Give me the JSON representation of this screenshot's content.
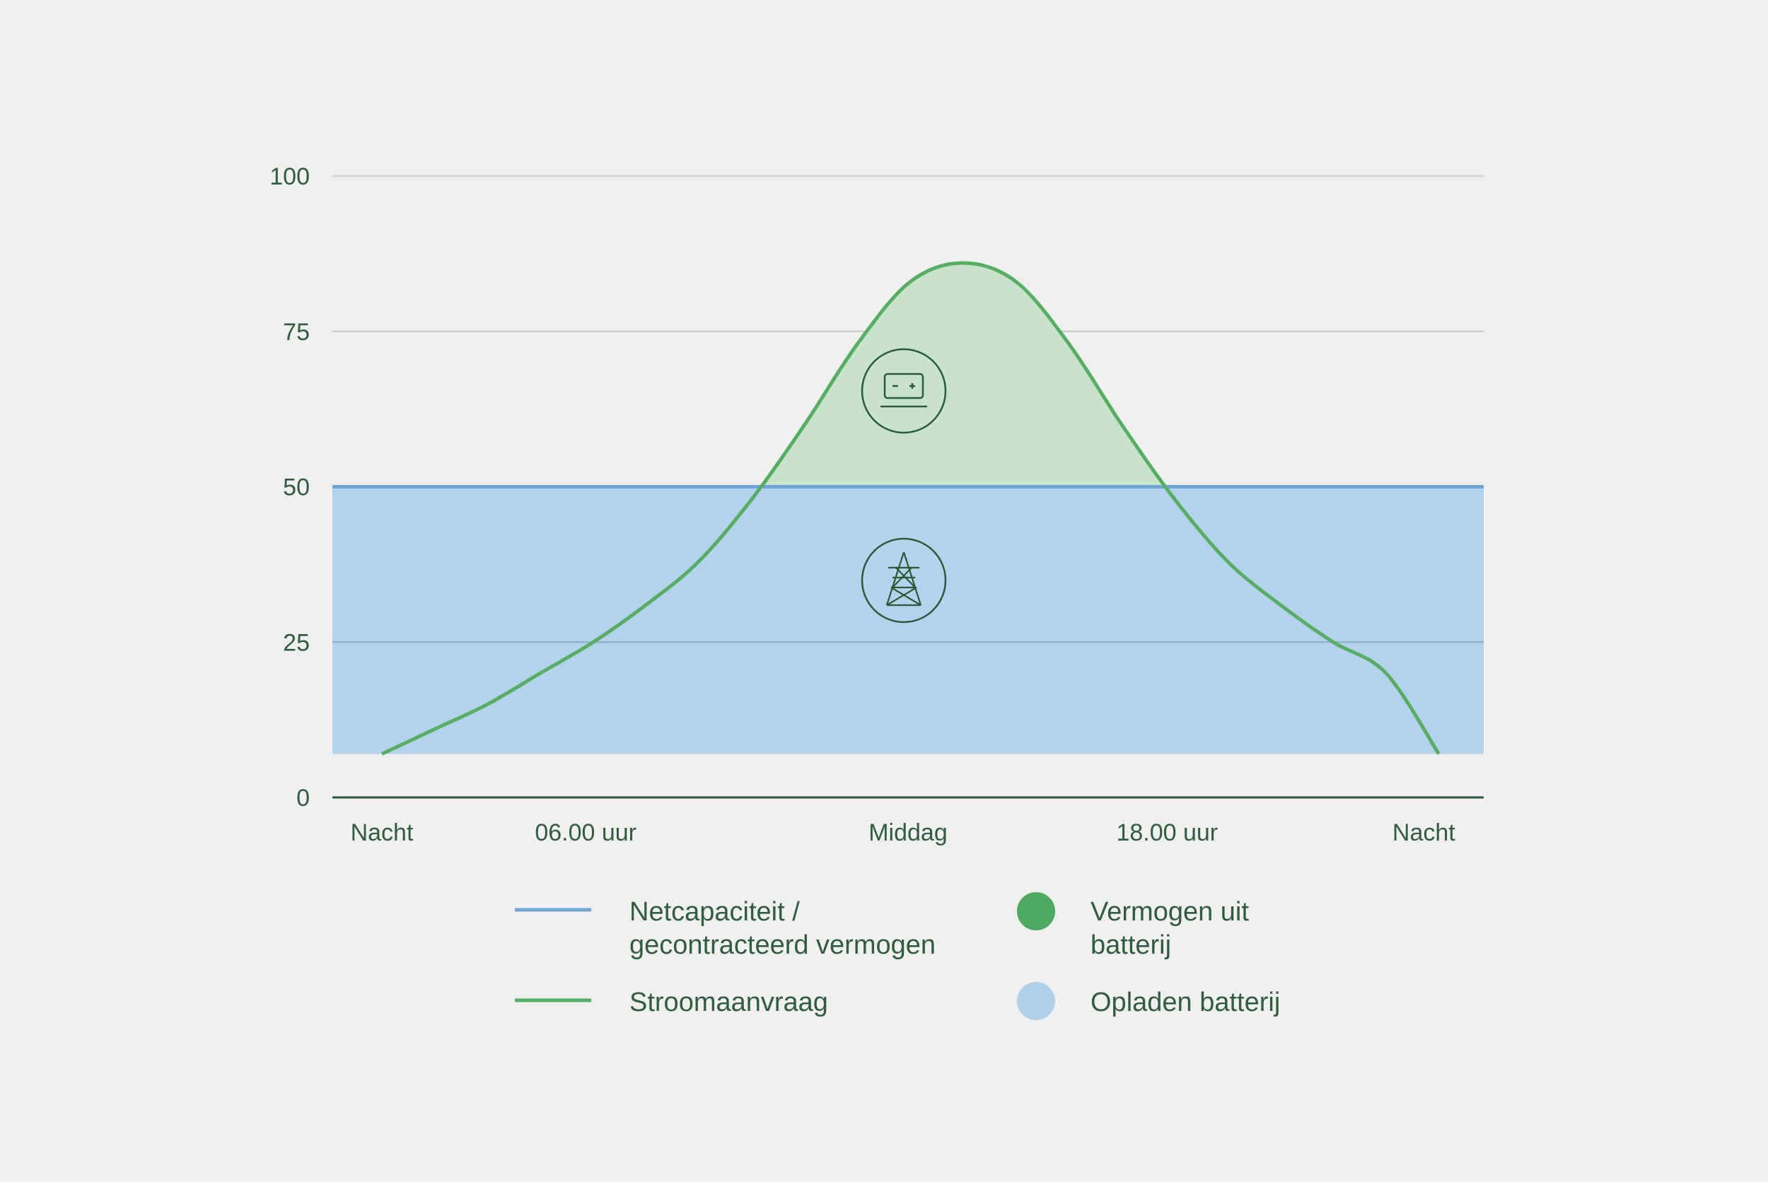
{
  "colors": {
    "background": "#f0f0f0",
    "text": "#2e5e3e",
    "grid": "#cfcfcf",
    "axis": "#2b5a3a",
    "capacity_line": "#6fa6d8",
    "charging_fill": "#b0d0ea",
    "demand_line": "#55ae62",
    "battery_fill": "#c9e2cc",
    "battery_dot": "#4daa60",
    "icon_stroke": "#2b5a3a"
  },
  "chart_data": {
    "type": "area",
    "categories": [
      "Nacht",
      "06.00 uur",
      "Middag",
      "18.00 uur",
      "Nacht"
    ],
    "y_ticks": [
      0,
      25,
      50,
      75,
      100
    ],
    "ylim": [
      0,
      100
    ],
    "grid": true,
    "capacity_level": 50,
    "charging_band": [
      7,
      50
    ],
    "series": [
      {
        "name": "Stroomaanvraag",
        "x": [
          0,
          0.05,
          0.1,
          0.15,
          0.2,
          0.25,
          0.3,
          0.35,
          0.4,
          0.45,
          0.5,
          0.55,
          0.6,
          0.65,
          0.7,
          0.75,
          0.8,
          0.85,
          0.9,
          0.95,
          1
        ],
        "values": [
          7,
          11,
          15,
          20,
          25,
          31,
          38,
          48,
          60,
          73,
          83,
          86,
          83,
          73,
          60,
          48,
          38,
          31,
          25,
          20,
          7
        ]
      }
    ],
    "icons": [
      "battery-icon",
      "power-pylon-icon"
    ],
    "legend": [
      {
        "label": "Netcapaciteit / gecontracteerd vermogen",
        "lines": [
          "Netcapaciteit /",
          "gecontracteerd vermogen"
        ],
        "marker": "line",
        "color": "#6fa6d8"
      },
      {
        "label": "Vermogen uit batterij",
        "lines": [
          "Vermogen uit",
          "batterij"
        ],
        "marker": "dot",
        "color": "#4daa60"
      },
      {
        "label": "Stroomaanvraag",
        "lines": [
          "Stroomaanvraag"
        ],
        "marker": "line",
        "color": "#55ae62"
      },
      {
        "label": "Opladen batterij",
        "lines": [
          "Opladen batterij"
        ],
        "marker": "dot",
        "color": "#b0d0ea"
      }
    ]
  }
}
